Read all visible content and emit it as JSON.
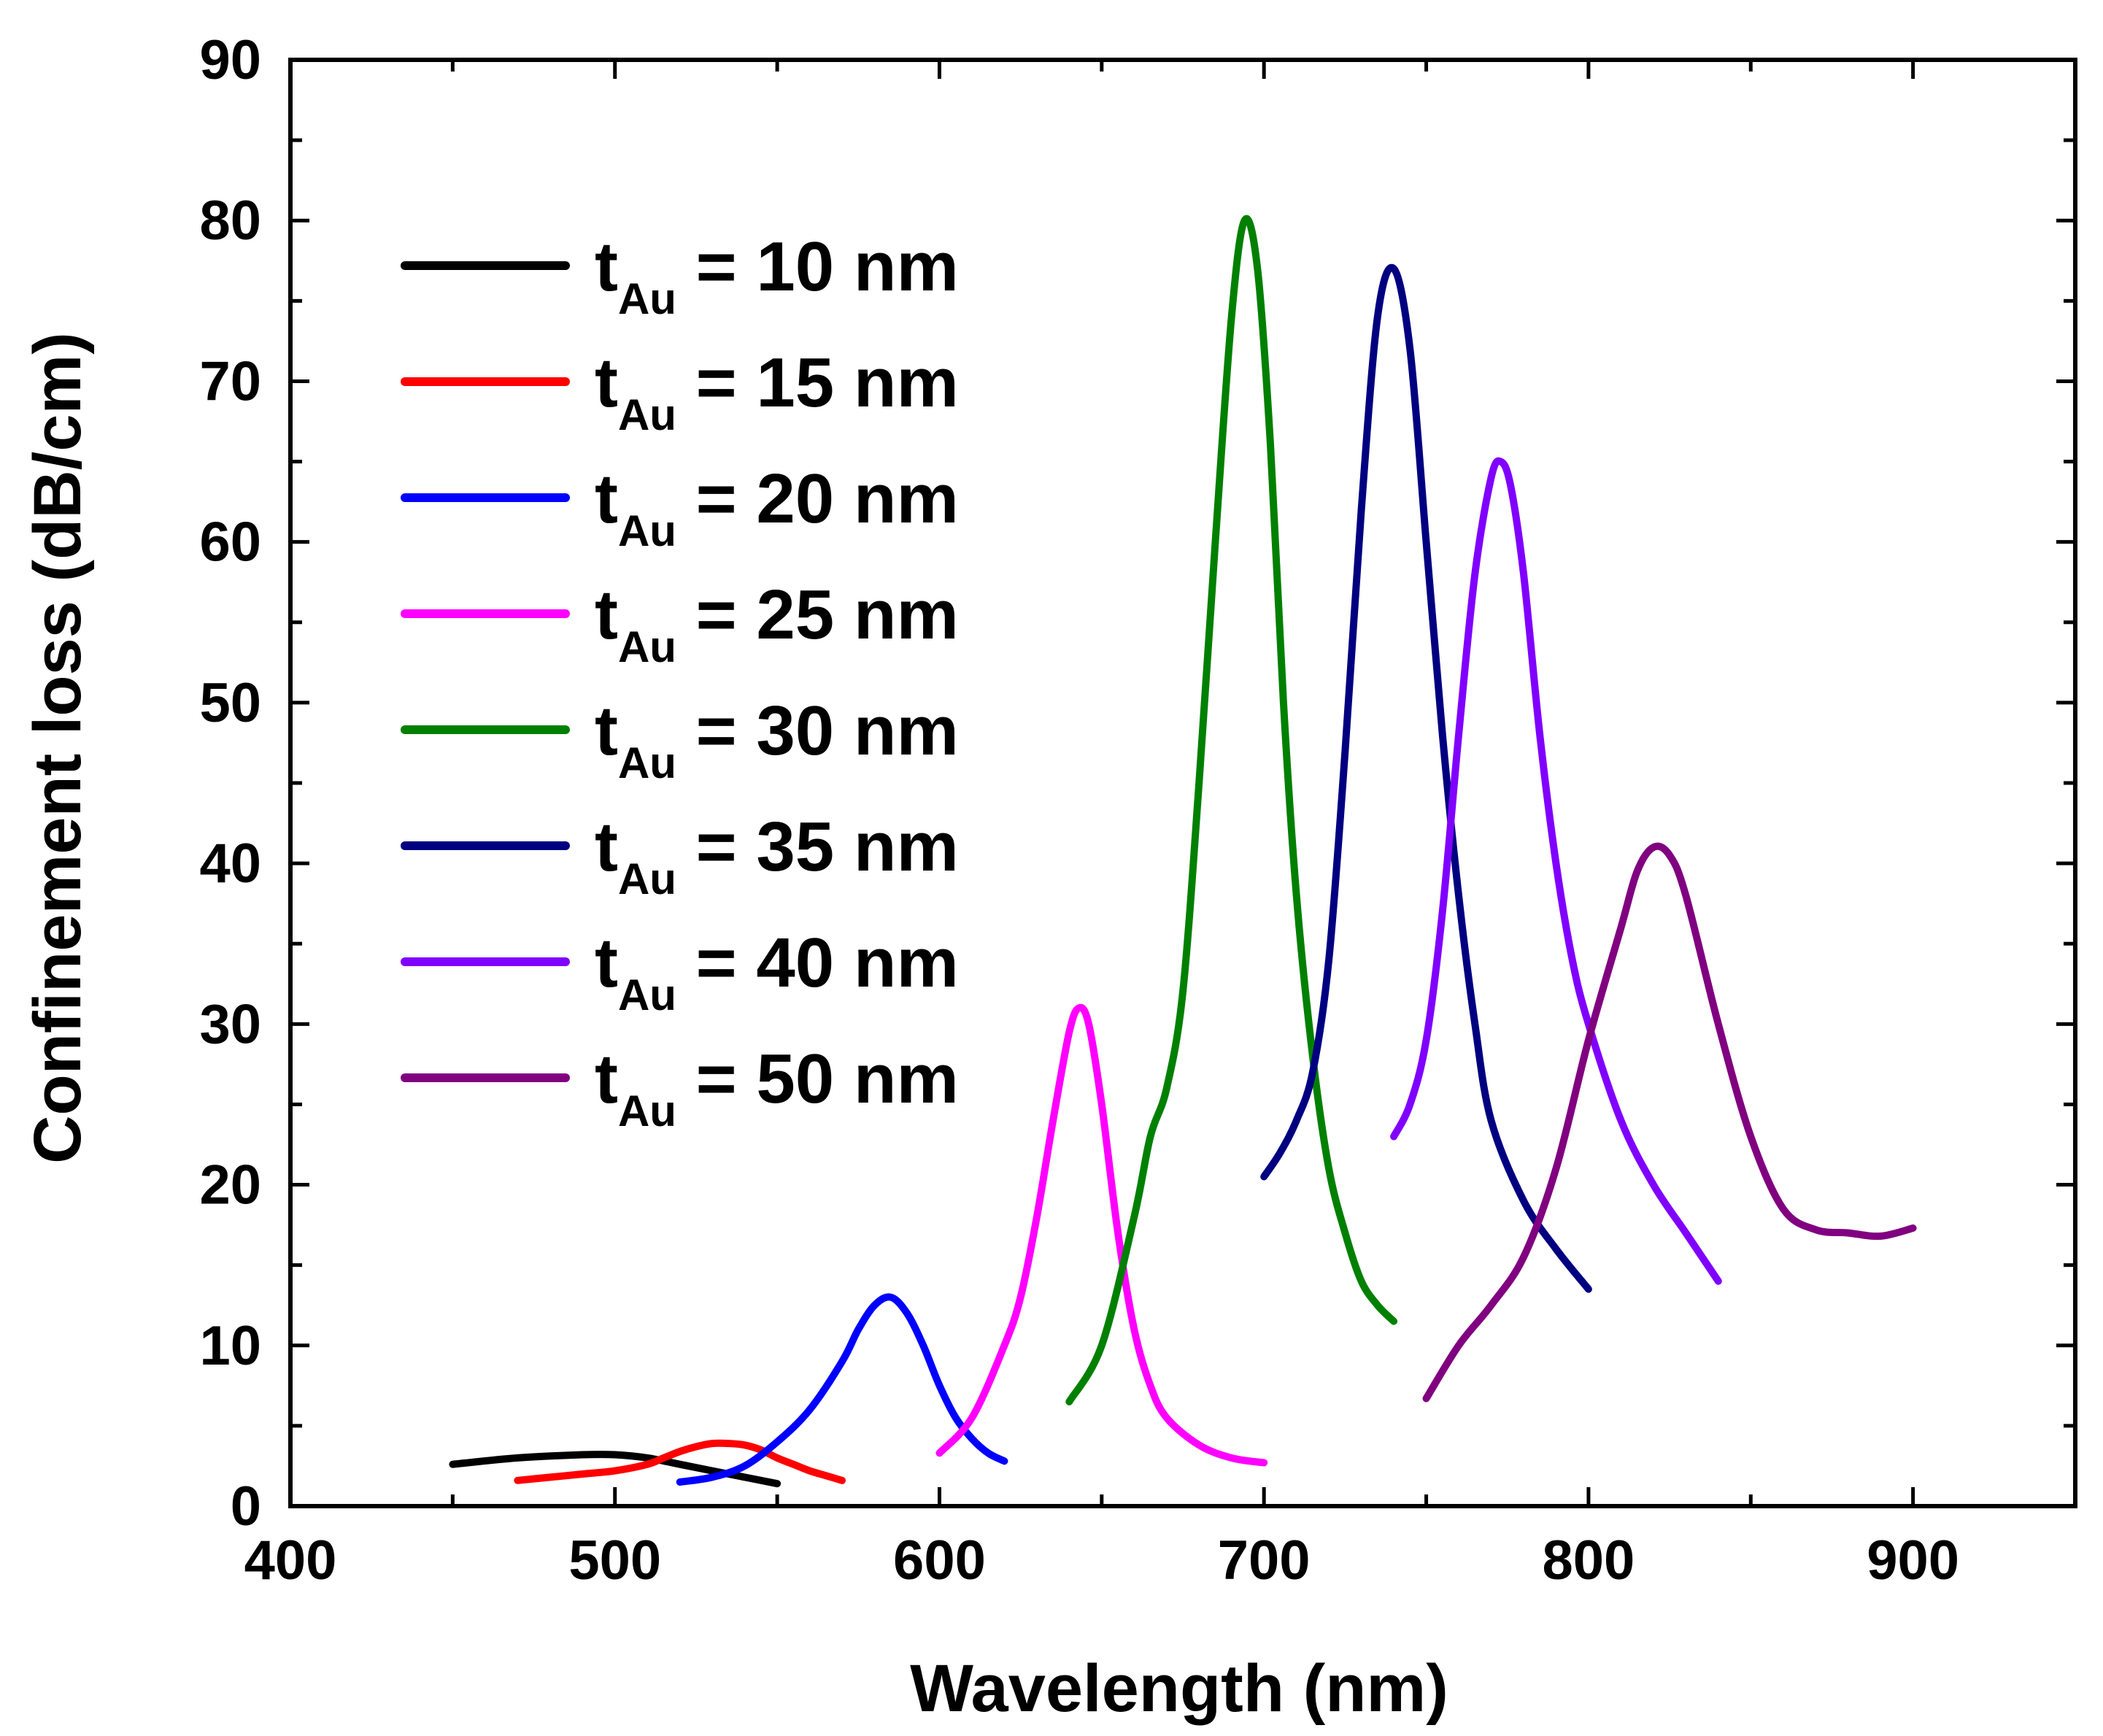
{
  "chart_data": {
    "type": "line",
    "title": "",
    "xlabel": "Wavelength (nm)",
    "ylabel": "Confinement loss (dB/cm)",
    "xlim": [
      400,
      950
    ],
    "ylim": [
      0,
      90
    ],
    "xticks": [
      400,
      500,
      600,
      700,
      800,
      900
    ],
    "yticks": [
      0,
      10,
      20,
      30,
      40,
      50,
      60,
      70,
      80,
      90
    ],
    "grid": false,
    "legend_position": "top-left",
    "series": [
      {
        "name": "t_Au = 10 nm",
        "label_main": "t",
        "label_sub": "Au",
        "label_rest": " = 10 nm",
        "color": "#000000",
        "x": [
          450,
          470,
          490,
          500,
          510,
          520,
          530,
          540,
          550
        ],
        "y": [
          2.6,
          3.0,
          3.2,
          3.2,
          3.0,
          2.6,
          2.2,
          1.8,
          1.4
        ]
      },
      {
        "name": "t_Au = 15 nm",
        "label_main": "t",
        "label_sub": "Au",
        "label_rest": " = 15 nm",
        "color": "#ff0000",
        "x": [
          470,
          480,
          490,
          500,
          510,
          515,
          520,
          525,
          530,
          535,
          540,
          545,
          550,
          555,
          560,
          565,
          570
        ],
        "y": [
          1.6,
          1.8,
          2.0,
          2.2,
          2.6,
          3.0,
          3.4,
          3.7,
          3.9,
          3.9,
          3.8,
          3.5,
          3.0,
          2.6,
          2.2,
          1.9,
          1.6
        ]
      },
      {
        "name": "t_Au = 20 nm",
        "label_main": "t",
        "label_sub": "Au",
        "label_rest": " = 20 nm",
        "color": "#0000ff",
        "x": [
          520,
          530,
          540,
          550,
          560,
          570,
          575,
          580,
          585,
          590,
          595,
          600,
          605,
          610,
          615,
          620
        ],
        "y": [
          1.5,
          1.8,
          2.5,
          4.0,
          6.0,
          9.0,
          11.0,
          12.5,
          13.0,
          12.0,
          10.0,
          7.5,
          5.5,
          4.2,
          3.3,
          2.8
        ]
      },
      {
        "name": "t_Au = 25 nm",
        "label_main": "t",
        "label_sub": "Au",
        "label_rest": " = 25 nm",
        "color": "#ff00ff",
        "x": [
          600,
          610,
          620,
          625,
          630,
          635,
          640,
          643,
          646,
          650,
          655,
          660,
          665,
          670,
          680,
          690,
          700
        ],
        "y": [
          3.3,
          5.5,
          10.0,
          13.0,
          18.0,
          24.0,
          29.5,
          31.0,
          30.0,
          25.0,
          17.0,
          11.0,
          7.5,
          5.5,
          3.8,
          3.0,
          2.7
        ]
      },
      {
        "name": "t_Au = 30 nm",
        "label_main": "t",
        "label_sub": "Au",
        "label_rest": " = 30 nm",
        "color": "#008000",
        "x": [
          640,
          650,
          660,
          665,
          670,
          675,
          680,
          685,
          690,
          694,
          698,
          702,
          706,
          710,
          715,
          720,
          725,
          730,
          735,
          740
        ],
        "y": [
          6.5,
          10.0,
          18.0,
          23.0,
          26.0,
          32.0,
          45.0,
          60.0,
          74.0,
          80.0,
          77.0,
          66.0,
          50.0,
          38.0,
          28.0,
          21.0,
          17.0,
          14.0,
          12.5,
          11.5
        ]
      },
      {
        "name": "t_Au = 35 nm",
        "label_main": "t",
        "label_sub": "Au",
        "label_rest": " = 35 nm",
        "color": "#000080",
        "x": [
          700,
          705,
          710,
          715,
          720,
          725,
          730,
          735,
          740,
          745,
          750,
          755,
          760,
          765,
          770,
          780,
          790,
          800
        ],
        "y": [
          20.5,
          22.0,
          24.0,
          27.0,
          34.0,
          47.0,
          62.0,
          74.0,
          77.0,
          72.0,
          60.0,
          48.0,
          38.0,
          30.0,
          24.0,
          19.0,
          16.0,
          13.5
        ]
      },
      {
        "name": "t_Au = 40 nm",
        "label_main": "t",
        "label_sub": "Au",
        "label_rest": " = 40 nm",
        "color": "#8000ff",
        "x": [
          740,
          745,
          750,
          755,
          760,
          765,
          770,
          773,
          776,
          780,
          785,
          790,
          795,
          800,
          810,
          820,
          830,
          840
        ],
        "y": [
          23.0,
          25.0,
          29.0,
          37.0,
          48.0,
          58.0,
          64.0,
          65.0,
          63.5,
          58.0,
          48.0,
          40.0,
          34.0,
          30.0,
          24.0,
          20.0,
          17.0,
          14.0
        ]
      },
      {
        "name": "t_Au = 50 nm",
        "label_main": "t",
        "label_sub": "Au",
        "label_rest": " = 50 nm",
        "color": "#800080",
        "x": [
          750,
          760,
          770,
          780,
          790,
          800,
          810,
          815,
          820,
          825,
          830,
          840,
          850,
          860,
          870,
          880,
          890,
          900
        ],
        "y": [
          6.7,
          10.0,
          12.5,
          15.5,
          21.0,
          29.0,
          36.0,
          39.5,
          41.0,
          40.5,
          38.0,
          30.0,
          23.0,
          18.5,
          17.2,
          17.0,
          16.8,
          17.3
        ]
      }
    ]
  }
}
